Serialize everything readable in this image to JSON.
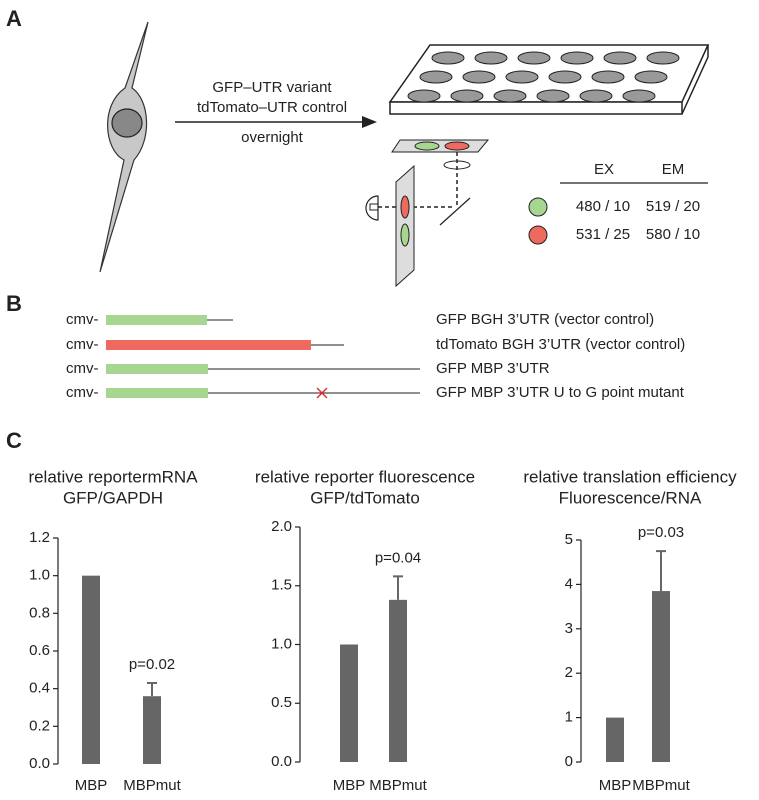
{
  "panel_labels": [
    "A",
    "B",
    "C"
  ],
  "panel_a": {
    "protocol": [
      "GFP–UTR variant",
      "tdTomato–UTR control"
    ],
    "time": "overnight",
    "filter_table": {
      "header": [
        "EX",
        "EM"
      ],
      "rows": [
        [
          "480 / 10",
          "519 / 20"
        ],
        [
          "531 / 25",
          "580 / 10"
        ]
      ]
    }
  },
  "panel_b": {
    "constructs": [
      {
        "promoter": "cmv-",
        "label": "GFP BGH 3’UTR (vector control)"
      },
      {
        "promoter": "cmv-",
        "label": "tdTomato BGH 3’UTR (vector control)"
      },
      {
        "promoter": "cmv-",
        "label": "GFP MBP 3’UTR"
      },
      {
        "promoter": "cmv-",
        "label": "GFP MBP 3’UTR  U to G point mutant"
      }
    ]
  },
  "chart_data": [
    {
      "type": "bar",
      "title": "relative reportermRNA",
      "subtitle": "GFP/GAPDH",
      "categories": [
        "MBP",
        "MBPmut"
      ],
      "values": [
        1.0,
        0.36
      ],
      "errors": [
        null,
        0.07
      ],
      "color": "#666666",
      "annotation": "p=0.02",
      "ylim": [
        0,
        1.2
      ],
      "yticks": [
        {
          "value": 0,
          "label": "0.0"
        },
        0.2,
        0.4,
        0.6,
        0.8,
        {
          "value": 1,
          "label": "1.0"
        },
        1.2
      ]
    },
    {
      "type": "bar",
      "title": "relative reporter fluorescence",
      "subtitle": "GFP/tdTomato",
      "categories": [
        "MBP",
        "MBPmut"
      ],
      "values": [
        1.0,
        1.38
      ],
      "errors": [
        null,
        0.2
      ],
      "color": "#666666",
      "annotation": "p=0.04",
      "ylim": [
        0,
        2
      ],
      "yticks": [
        {
          "value": 0,
          "label": "0.0"
        },
        0.5,
        {
          "value": 1,
          "label": "1.0"
        },
        1.5,
        {
          "value": 2,
          "label": "2.0"
        }
      ]
    },
    {
      "type": "bar",
      "title": "relative translation efficiency",
      "subtitle": "Fluorescence/RNA",
      "categories": [
        "MBP",
        "MBPmut"
      ],
      "values": [
        1,
        3.85
      ],
      "errors": [
        null,
        0.9
      ],
      "color": "#666666",
      "annotation": "p=0.03",
      "ylim": [
        0,
        5
      ],
      "yticks": [
        0,
        1,
        2,
        3,
        4,
        5
      ]
    }
  ]
}
